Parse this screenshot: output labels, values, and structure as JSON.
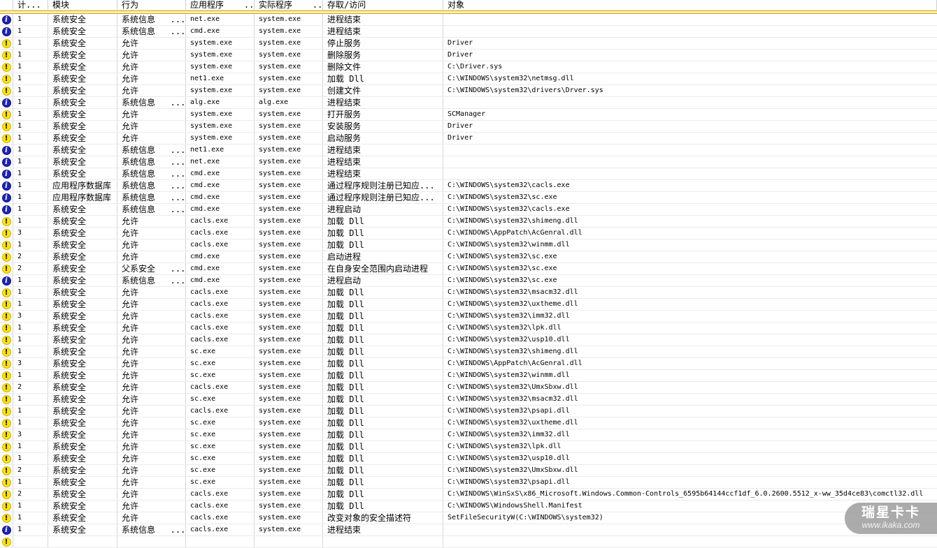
{
  "header": {
    "columns": [
      "",
      "计...",
      "模块",
      "行为",
      "应用程序    ...",
      "实际程序    ...",
      "存取/访问",
      "对象"
    ]
  },
  "icons": {
    "info_glyph": "i",
    "warning_glyph": "!"
  },
  "colors": {
    "info_icon_blue": "#1c24b8",
    "warning_icon_yellow": "#ffe30a",
    "header_band_gold": "#d9ad3a",
    "watermark_gray": "#949494"
  },
  "rows": [
    {
      "icon": "info",
      "count": "1",
      "module": "系统安全",
      "behavior": "系统信息   ...",
      "app": "net.exe",
      "actual": "system.exe",
      "access": "进程结束",
      "object": ""
    },
    {
      "icon": "info",
      "count": "1",
      "module": "系统安全",
      "behavior": "系统信息   ...",
      "app": "cmd.exe",
      "actual": "system.exe",
      "access": "进程结束",
      "object": ""
    },
    {
      "icon": "warn",
      "count": "1",
      "module": "系统安全",
      "behavior": "允许",
      "app": "system.exe",
      "actual": "system.exe",
      "access": "停止服务",
      "object": "Driver"
    },
    {
      "icon": "warn",
      "count": "1",
      "module": "系统安全",
      "behavior": "允许",
      "app": "system.exe",
      "actual": "system.exe",
      "access": "删除服务",
      "object": "Driver"
    },
    {
      "icon": "warn",
      "count": "1",
      "module": "系统安全",
      "behavior": "允许",
      "app": "system.exe",
      "actual": "system.exe",
      "access": "删除文件",
      "object": "C:\\Driver.sys"
    },
    {
      "icon": "warn",
      "count": "1",
      "module": "系统安全",
      "behavior": "允许",
      "app": "net1.exe",
      "actual": "system.exe",
      "access": "加载 Dll",
      "object": "C:\\WINDOWS\\system32\\netmsg.dll"
    },
    {
      "icon": "warn",
      "count": "1",
      "module": "系统安全",
      "behavior": "允许",
      "app": "system.exe",
      "actual": "system.exe",
      "access": "创建文件",
      "object": "C:\\WINDOWS\\system32\\drivers\\Drver.sys"
    },
    {
      "icon": "info",
      "count": "1",
      "module": "系统安全",
      "behavior": "系统信息   ...",
      "app": "alg.exe",
      "actual": "alg.exe",
      "access": "进程结束",
      "object": ""
    },
    {
      "icon": "warn",
      "count": "1",
      "module": "系统安全",
      "behavior": "允许",
      "app": "system.exe",
      "actual": "system.exe",
      "access": "打开服务",
      "object": "SCManager"
    },
    {
      "icon": "warn",
      "count": "1",
      "module": "系统安全",
      "behavior": "允许",
      "app": "system.exe",
      "actual": "system.exe",
      "access": "安装服务",
      "object": "Driver"
    },
    {
      "icon": "warn",
      "count": "1",
      "module": "系统安全",
      "behavior": "允许",
      "app": "system.exe",
      "actual": "system.exe",
      "access": "启动服务",
      "object": "Driver"
    },
    {
      "icon": "info",
      "count": "1",
      "module": "系统安全",
      "behavior": "系统信息   ...",
      "app": "net1.exe",
      "actual": "system.exe",
      "access": "进程结束",
      "object": ""
    },
    {
      "icon": "info",
      "count": "1",
      "module": "系统安全",
      "behavior": "系统信息   ...",
      "app": "net.exe",
      "actual": "system.exe",
      "access": "进程结束",
      "object": ""
    },
    {
      "icon": "info",
      "count": "1",
      "module": "系统安全",
      "behavior": "系统信息   ...",
      "app": "cmd.exe",
      "actual": "system.exe",
      "access": "进程结束",
      "object": ""
    },
    {
      "icon": "info",
      "count": "1",
      "module": "应用程序数据库",
      "behavior": "系统信息   ...",
      "app": "cmd.exe",
      "actual": "system.exe",
      "access": "通过程序规则注册已知应...",
      "object": "C:\\WINDOWS\\system32\\cacls.exe"
    },
    {
      "icon": "info",
      "count": "1",
      "module": "应用程序数据库",
      "behavior": "系统信息   ...",
      "app": "cmd.exe",
      "actual": "system.exe",
      "access": "通过程序规则注册已知应...",
      "object": "C:\\WINDOWS\\system32\\sc.exe"
    },
    {
      "icon": "info",
      "count": "1",
      "module": "系统安全",
      "behavior": "系统信息   ...",
      "app": "cmd.exe",
      "actual": "system.exe",
      "access": "进程启动",
      "object": "C:\\WINDOWS\\system32\\cacls.exe"
    },
    {
      "icon": "warn",
      "count": "1",
      "module": "系统安全",
      "behavior": "允许",
      "app": "cacls.exe",
      "actual": "system.exe",
      "access": "加载 Dll",
      "object": "C:\\WINDOWS\\system32\\shimeng.dll"
    },
    {
      "icon": "warn",
      "count": "3",
      "module": "系统安全",
      "behavior": "允许",
      "app": "cacls.exe",
      "actual": "system.exe",
      "access": "加载 Dll",
      "object": "C:\\WINDOWS\\AppPatch\\AcGenral.dll"
    },
    {
      "icon": "warn",
      "count": "1",
      "module": "系统安全",
      "behavior": "允许",
      "app": "cacls.exe",
      "actual": "system.exe",
      "access": "加载 Dll",
      "object": "C:\\WINDOWS\\system32\\winmm.dll"
    },
    {
      "icon": "warn",
      "count": "2",
      "module": "系统安全",
      "behavior": "允许",
      "app": "cmd.exe",
      "actual": "system.exe",
      "access": "启动进程",
      "object": "C:\\WINDOWS\\system32\\sc.exe"
    },
    {
      "icon": "warn",
      "count": "2",
      "module": "系统安全",
      "behavior": "父系安全   ...",
      "app": "cmd.exe",
      "actual": "system.exe",
      "access": "在自身安全范围内启动进程",
      "object": "C:\\WINDOWS\\system32\\sc.exe"
    },
    {
      "icon": "info",
      "count": "1",
      "module": "系统安全",
      "behavior": "系统信息   ...",
      "app": "cmd.exe",
      "actual": "system.exe",
      "access": "进程启动",
      "object": "C:\\WINDOWS\\system32\\sc.exe"
    },
    {
      "icon": "warn",
      "count": "1",
      "module": "系统安全",
      "behavior": "允许",
      "app": "cacls.exe",
      "actual": "system.exe",
      "access": "加载 Dll",
      "object": "C:\\WINDOWS\\system32\\msacm32.dll"
    },
    {
      "icon": "warn",
      "count": "1",
      "module": "系统安全",
      "behavior": "允许",
      "app": "cacls.exe",
      "actual": "system.exe",
      "access": "加载 Dll",
      "object": "C:\\WINDOWS\\system32\\uxtheme.dll"
    },
    {
      "icon": "warn",
      "count": "3",
      "module": "系统安全",
      "behavior": "允许",
      "app": "cacls.exe",
      "actual": "system.exe",
      "access": "加载 Dll",
      "object": "C:\\WINDOWS\\system32\\imm32.dll"
    },
    {
      "icon": "warn",
      "count": "1",
      "module": "系统安全",
      "behavior": "允许",
      "app": "cacls.exe",
      "actual": "system.exe",
      "access": "加载 Dll",
      "object": "C:\\WINDOWS\\system32\\lpk.dll"
    },
    {
      "icon": "warn",
      "count": "1",
      "module": "系统安全",
      "behavior": "允许",
      "app": "cacls.exe",
      "actual": "system.exe",
      "access": "加载 Dll",
      "object": "C:\\WINDOWS\\system32\\usp10.dll"
    },
    {
      "icon": "warn",
      "count": "1",
      "module": "系统安全",
      "behavior": "允许",
      "app": "sc.exe",
      "actual": "system.exe",
      "access": "加载 Dll",
      "object": "C:\\WINDOWS\\system32\\shimeng.dll"
    },
    {
      "icon": "warn",
      "count": "3",
      "module": "系统安全",
      "behavior": "允许",
      "app": "sc.exe",
      "actual": "system.exe",
      "access": "加载 Dll",
      "object": "C:\\WINDOWS\\AppPatch\\AcGenral.dll"
    },
    {
      "icon": "warn",
      "count": "1",
      "module": "系统安全",
      "behavior": "允许",
      "app": "sc.exe",
      "actual": "system.exe",
      "access": "加载 Dll",
      "object": "C:\\WINDOWS\\system32\\winmm.dll"
    },
    {
      "icon": "warn",
      "count": "2",
      "module": "系统安全",
      "behavior": "允许",
      "app": "cacls.exe",
      "actual": "system.exe",
      "access": "加载 Dll",
      "object": "C:\\WINDOWS\\system32\\UmxSbxw.dll"
    },
    {
      "icon": "warn",
      "count": "1",
      "module": "系统安全",
      "behavior": "允许",
      "app": "sc.exe",
      "actual": "system.exe",
      "access": "加载 Dll",
      "object": "C:\\WINDOWS\\system32\\msacm32.dll"
    },
    {
      "icon": "warn",
      "count": "1",
      "module": "系统安全",
      "behavior": "允许",
      "app": "cacls.exe",
      "actual": "system.exe",
      "access": "加载 Dll",
      "object": "C:\\WINDOWS\\system32\\psapi.dll"
    },
    {
      "icon": "warn",
      "count": "1",
      "module": "系统安全",
      "behavior": "允许",
      "app": "sc.exe",
      "actual": "system.exe",
      "access": "加载 Dll",
      "object": "C:\\WINDOWS\\system32\\uxtheme.dll"
    },
    {
      "icon": "warn",
      "count": "3",
      "module": "系统安全",
      "behavior": "允许",
      "app": "sc.exe",
      "actual": "system.exe",
      "access": "加载 Dll",
      "object": "C:\\WINDOWS\\system32\\imm32.dll"
    },
    {
      "icon": "warn",
      "count": "1",
      "module": "系统安全",
      "behavior": "允许",
      "app": "sc.exe",
      "actual": "system.exe",
      "access": "加载 Dll",
      "object": "C:\\WINDOWS\\system32\\lpk.dll"
    },
    {
      "icon": "warn",
      "count": "1",
      "module": "系统安全",
      "behavior": "允许",
      "app": "sc.exe",
      "actual": "system.exe",
      "access": "加载 Dll",
      "object": "C:\\WINDOWS\\system32\\usp10.dll"
    },
    {
      "icon": "warn",
      "count": "2",
      "module": "系统安全",
      "behavior": "允许",
      "app": "sc.exe",
      "actual": "system.exe",
      "access": "加载 Dll",
      "object": "C:\\WINDOWS\\system32\\UmxSbxw.dll"
    },
    {
      "icon": "warn",
      "count": "1",
      "module": "系统安全",
      "behavior": "允许",
      "app": "sc.exe",
      "actual": "system.exe",
      "access": "加载 Dll",
      "object": "C:\\WINDOWS\\system32\\psapi.dll"
    },
    {
      "icon": "warn",
      "count": "2",
      "module": "系统安全",
      "behavior": "允许",
      "app": "cacls.exe",
      "actual": "system.exe",
      "access": "加载 Dll",
      "object": "C:\\WINDOWS\\WinSxS\\x86_Microsoft.Windows.Common-Controls_6595b64144ccf1df_6.0.2600.5512_x-ww_35d4ce83\\comctl32.dll"
    },
    {
      "icon": "warn",
      "count": "1",
      "module": "系统安全",
      "behavior": "允许",
      "app": "cacls.exe",
      "actual": "system.exe",
      "access": "加载 Dll",
      "object": "C:\\WINDOWS\\WindowsShell.Manifest"
    },
    {
      "icon": "warn",
      "count": "1",
      "module": "系统安全",
      "behavior": "允许",
      "app": "cacls.exe",
      "actual": "system.exe",
      "access": "改变对象的安全描述符",
      "object": "SetFileSecurityW(C:\\WINDOWS\\system32)"
    },
    {
      "icon": "info",
      "count": "1",
      "module": "系统安全",
      "behavior": "系统信息   ...",
      "app": "cacls.exe",
      "actual": "system.exe",
      "access": "进程结束",
      "object": ""
    },
    {
      "icon": "warn",
      "count": "",
      "module": "",
      "behavior": "",
      "app": "",
      "actual": "",
      "access": "",
      "object": ""
    }
  ],
  "watermark": {
    "title": "瑞星卡卡",
    "url": "www.ikaka.com"
  }
}
